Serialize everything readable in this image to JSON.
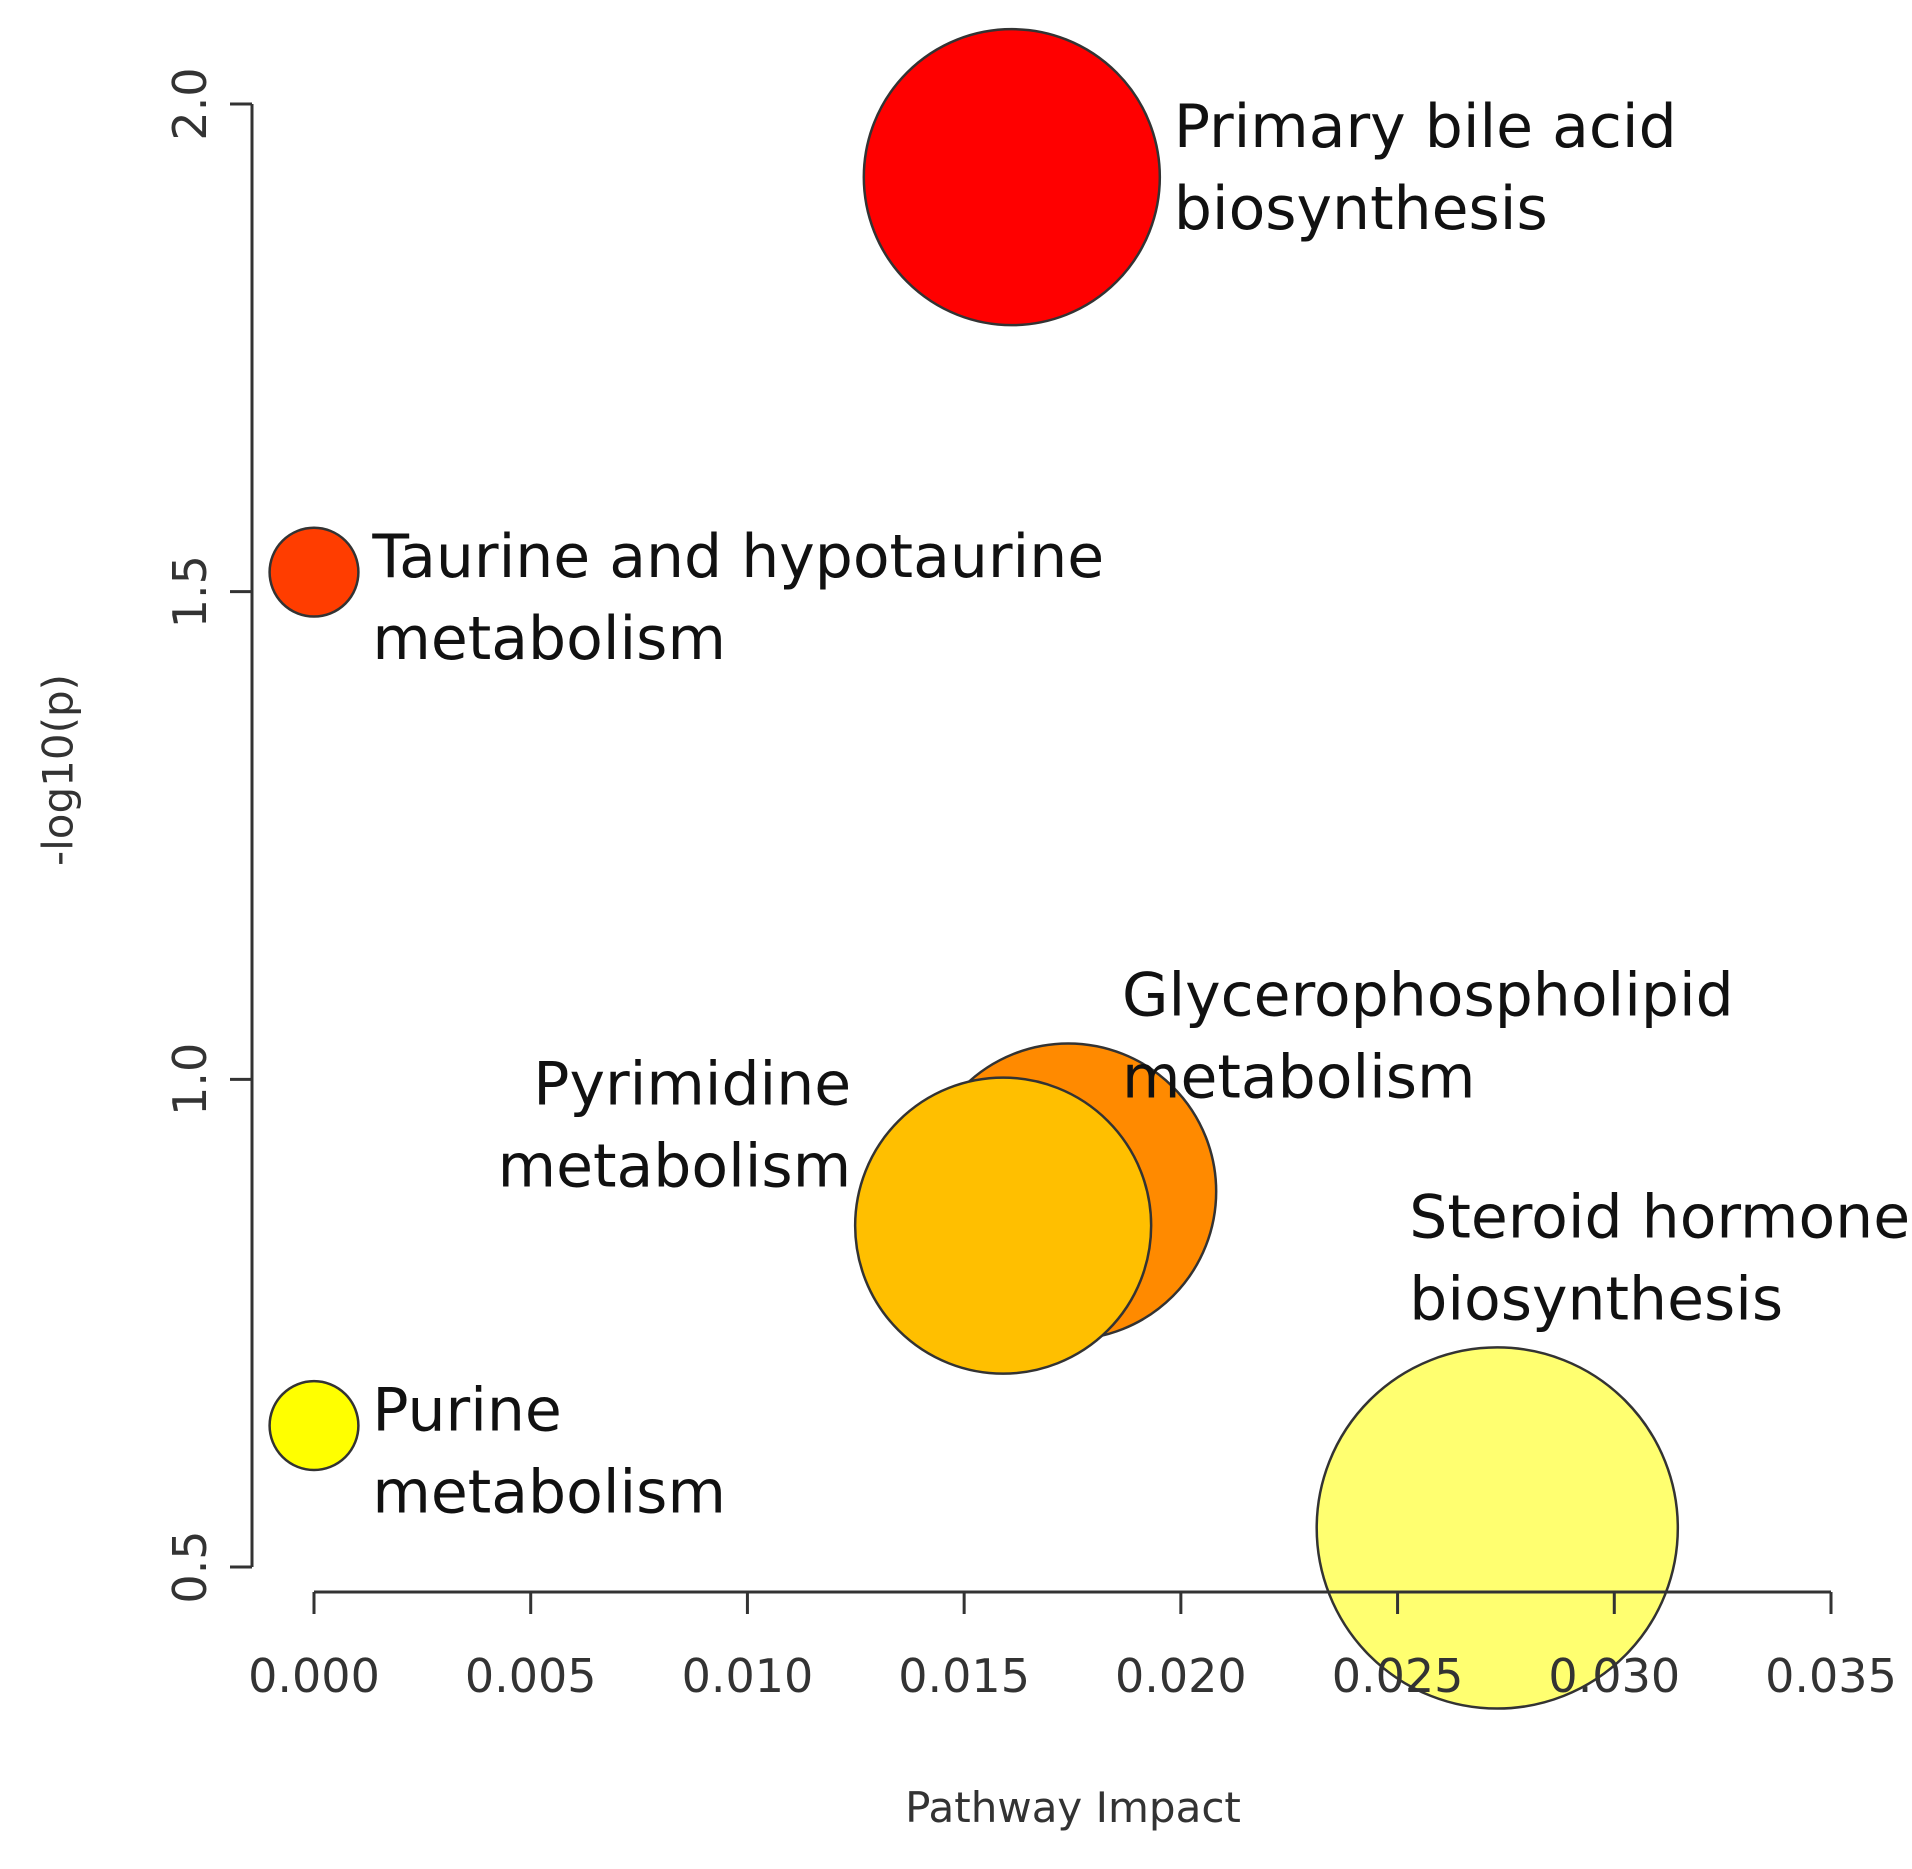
{
  "chart_data": {
    "type": "scatter",
    "title": "",
    "xlabel": "Pathway Impact",
    "ylabel": "-log10(p)",
    "xlim": [
      0.0,
      0.035
    ],
    "ylim": [
      0.5,
      2.0
    ],
    "x_ticks": [
      "0.000",
      "0.005",
      "0.010",
      "0.015",
      "0.020",
      "0.025",
      "0.030",
      "0.035"
    ],
    "y_ticks": [
      "0.5",
      "1.0",
      "1.5",
      "2.0"
    ],
    "grid": false,
    "legend": "none",
    "points": [
      {
        "name": "Primary bile acid biosynthesis",
        "label_lines": [
          "Primary bile acid",
          "biosynthesis"
        ],
        "x": 0.0161,
        "y": 1.925,
        "size": 1.0,
        "color": "#ff0000",
        "label_side": "right-top"
      },
      {
        "name": "Taurine and hypotaurine metabolism",
        "label_lines": [
          "Taurine and hypotaurine",
          "metabolism"
        ],
        "x": 0.0,
        "y": 1.52,
        "size": 0.3,
        "color": "#ff3d00",
        "label_side": "right"
      },
      {
        "name": "Glycerophospholipid metabolism",
        "label_lines": [
          "Glycerophospholipid",
          "metabolism"
        ],
        "x": 0.0174,
        "y": 0.885,
        "size": 1.0,
        "color": "#ff8a00",
        "label_side": "above-right"
      },
      {
        "name": "Pyrimidine metabolism",
        "label_lines": [
          "Pyrimidine",
          "metabolism"
        ],
        "x": 0.0159,
        "y": 0.85,
        "size": 1.0,
        "color": "#ffbf00",
        "label_side": "left"
      },
      {
        "name": "Purine metabolism",
        "label_lines": [
          "Purine",
          "metabolism"
        ],
        "x": 0.0,
        "y": 0.645,
        "size": 0.3,
        "color": "#ffff00",
        "label_side": "right"
      },
      {
        "name": "Steroid hormone biosynthesis",
        "label_lines": [
          "Steroid hormone",
          "biosynthesis"
        ],
        "x": 0.0273,
        "y": 0.54,
        "size": 1.22,
        "color": "#ffff70",
        "label_side": "above"
      }
    ]
  }
}
